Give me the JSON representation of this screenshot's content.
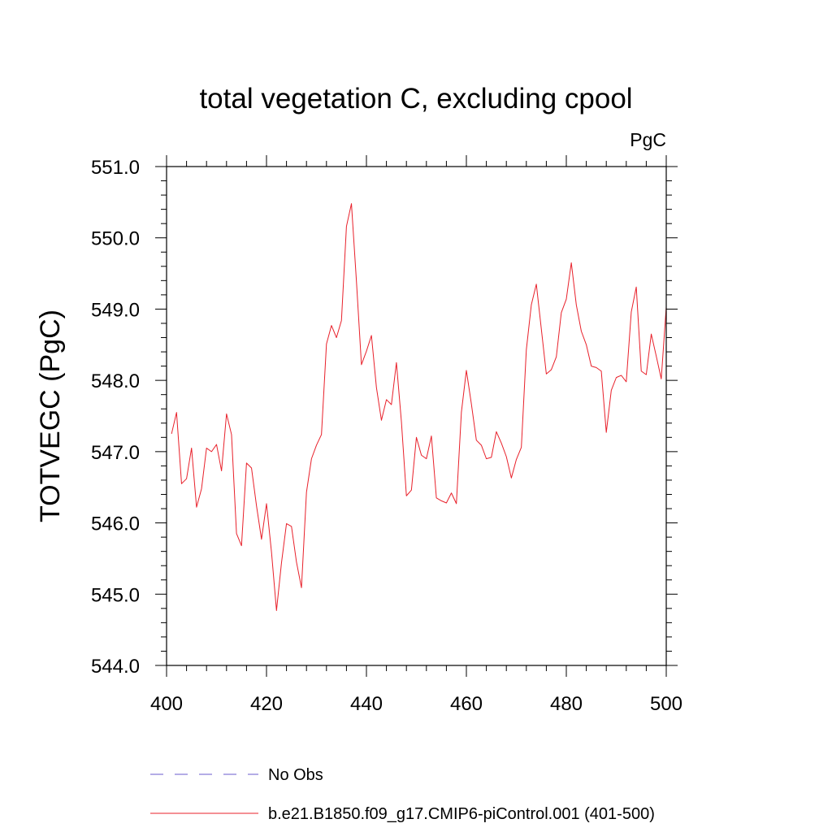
{
  "chart_data": {
    "type": "line",
    "title": "total vegetation C, excluding cpool",
    "units": "PgC",
    "xlabel": "",
    "ylabel": "TOTVEGC  (PgC)",
    "xlim": [
      400,
      500
    ],
    "ylim": [
      544.0,
      551.0
    ],
    "xticks": [
      400,
      420,
      440,
      460,
      480,
      500
    ],
    "xtick_labels": [
      "400",
      "420",
      "440",
      "460",
      "480",
      "500"
    ],
    "yticks": [
      544.0,
      545.0,
      546.0,
      547.0,
      548.0,
      549.0,
      550.0,
      551.0
    ],
    "ytick_labels": [
      "544.0",
      "545.0",
      "546.0",
      "547.0",
      "548.0",
      "549.0",
      "550.0",
      "551.0"
    ],
    "series": [
      {
        "name": "b.e21.B1850.f09_g17.CMIP6-piControl.001 (401-500)",
        "color": "#e8202a",
        "style": "solid",
        "x": [
          401,
          402,
          403,
          404,
          405,
          406,
          407,
          408,
          409,
          410,
          411,
          412,
          413,
          414,
          415,
          416,
          417,
          418,
          419,
          420,
          421,
          422,
          423,
          424,
          425,
          426,
          427,
          428,
          429,
          430,
          431,
          432,
          433,
          434,
          435,
          436,
          437,
          438,
          439,
          440,
          441,
          442,
          443,
          444,
          445,
          446,
          447,
          448,
          449,
          450,
          451,
          452,
          453,
          454,
          455,
          456,
          457,
          458,
          459,
          460,
          461,
          462,
          463,
          464,
          465,
          466,
          467,
          468,
          469,
          470,
          471,
          472,
          473,
          474,
          475,
          476,
          477,
          478,
          479,
          480,
          481,
          482,
          483,
          484,
          485,
          486,
          487,
          488,
          489,
          490,
          491,
          492,
          493,
          494,
          495,
          496,
          497,
          498,
          499,
          500
        ],
        "values": [
          547.25,
          547.55,
          546.55,
          546.62,
          547.05,
          546.22,
          546.48,
          547.05,
          547.0,
          547.1,
          546.73,
          547.53,
          547.24,
          545.85,
          545.68,
          546.84,
          546.77,
          546.24,
          545.77,
          546.27,
          545.59,
          544.77,
          545.44,
          545.99,
          545.95,
          545.45,
          545.09,
          546.43,
          546.9,
          547.09,
          547.24,
          548.51,
          548.77,
          548.6,
          548.84,
          550.16,
          550.48,
          549.39,
          548.22,
          548.41,
          548.63,
          547.9,
          547.44,
          547.73,
          547.66,
          548.25,
          547.42,
          546.38,
          546.46,
          547.2,
          546.95,
          546.9,
          547.22,
          546.35,
          546.31,
          546.28,
          546.42,
          546.27,
          547.55,
          548.14,
          547.67,
          547.16,
          547.09,
          546.9,
          546.92,
          547.28,
          547.12,
          546.93,
          546.63,
          546.89,
          547.06,
          548.43,
          549.06,
          549.35,
          548.72,
          548.09,
          548.15,
          548.33,
          548.95,
          549.14,
          549.65,
          549.06,
          548.69,
          548.5,
          548.2,
          548.18,
          548.13,
          547.27,
          547.86,
          548.04,
          548.07,
          547.98,
          548.96,
          549.31,
          548.13,
          548.08,
          548.65,
          548.34,
          548.02,
          549.03
        ]
      },
      {
        "name": "No Obs",
        "color": "#6a5acd",
        "style": "dashed",
        "x": [],
        "values": []
      }
    ],
    "legend_position": "bottom-left",
    "grid": false
  }
}
